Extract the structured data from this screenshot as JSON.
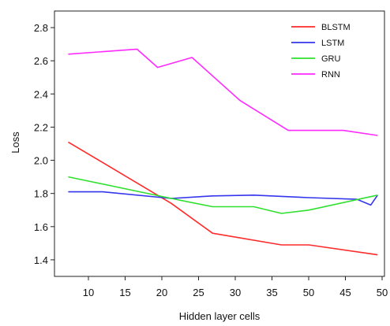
{
  "chart_data": {
    "type": "line",
    "xlabel": "Hidden layer cells",
    "ylabel": "Loss",
    "x_tick_labels": [
      "10",
      "15",
      "20",
      "25",
      "30",
      "35",
      "50",
      "45",
      "50"
    ],
    "ylim": [
      1.3,
      2.9
    ],
    "y_ticks": [
      1.4,
      1.6,
      1.8,
      2.0,
      2.2,
      2.4,
      2.6,
      2.8
    ],
    "y_tick_labels": [
      "1.4",
      "1.6",
      "1.8",
      "2.0",
      "2.2",
      "2.4",
      "2.6",
      "2.8"
    ],
    "grid": false,
    "legend_position": "top-right",
    "series": [
      {
        "name": "BLSTM",
        "color": "#ff2a2a",
        "points": [
          [
            5,
            2.11
          ],
          [
            20,
            1.74
          ],
          [
            26,
            1.56
          ],
          [
            36,
            1.49
          ],
          [
            40,
            1.49
          ],
          [
            50,
            1.43
          ]
        ]
      },
      {
        "name": "LSTM",
        "color": "#3535ee",
        "points": [
          [
            5,
            1.81
          ],
          [
            10,
            1.81
          ],
          [
            20,
            1.77
          ],
          [
            26,
            1.785
          ],
          [
            32,
            1.79
          ],
          [
            40,
            1.775
          ],
          [
            47,
            1.765
          ],
          [
            49,
            1.73
          ],
          [
            50,
            1.79
          ]
        ]
      },
      {
        "name": "GRU",
        "color": "#2fe02f",
        "points": [
          [
            5,
            1.9
          ],
          [
            20,
            1.77
          ],
          [
            26,
            1.72
          ],
          [
            32,
            1.72
          ],
          [
            36,
            1.68
          ],
          [
            40,
            1.7
          ],
          [
            50,
            1.79
          ]
        ]
      },
      {
        "name": "RNN",
        "color": "#ff2aff",
        "points": [
          [
            5,
            2.64
          ],
          [
            15,
            2.67
          ],
          [
            18,
            2.56
          ],
          [
            23,
            2.62
          ],
          [
            30,
            2.36
          ],
          [
            37,
            2.18
          ],
          [
            40,
            2.18
          ],
          [
            45,
            2.18
          ],
          [
            50,
            2.15
          ]
        ]
      }
    ]
  }
}
